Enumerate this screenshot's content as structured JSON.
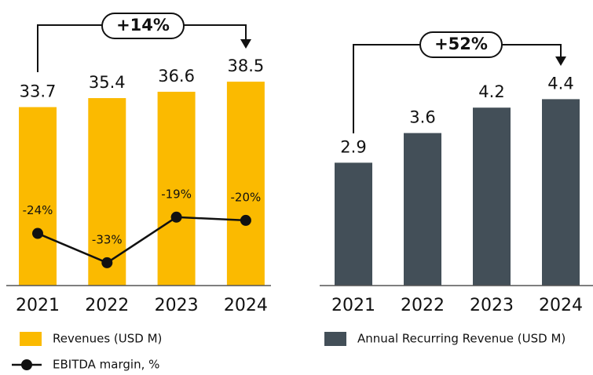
{
  "chart_data": [
    {
      "type": "bar",
      "categories": [
        "2021",
        "2022",
        "2023",
        "2024"
      ],
      "series": [
        {
          "name": "Revenues (USD M)",
          "color": "#fbba00",
          "values": [
            33.7,
            35.4,
            36.6,
            38.5
          ]
        },
        {
          "name": "EBITDA margin, %",
          "type": "line",
          "axis": "y2",
          "color": "#111111",
          "values": [
            -24,
            -33,
            -19,
            -20
          ],
          "value_labels": [
            "-24%",
            "-33%",
            "-19%",
            "-20%"
          ]
        }
      ],
      "ylim": [
        0,
        40
      ],
      "y2lim": [
        -40,
        25
      ],
      "annotation": "+14%"
    },
    {
      "type": "bar",
      "categories": [
        "2021",
        "2022",
        "2023",
        "2024"
      ],
      "series": [
        {
          "name": "Annual Recurring Revenue (USD M)",
          "color": "#434f58",
          "values": [
            2.9,
            3.6,
            4.2,
            4.4
          ]
        }
      ],
      "ylim": [
        0,
        5
      ],
      "annotation": "+52%"
    }
  ]
}
